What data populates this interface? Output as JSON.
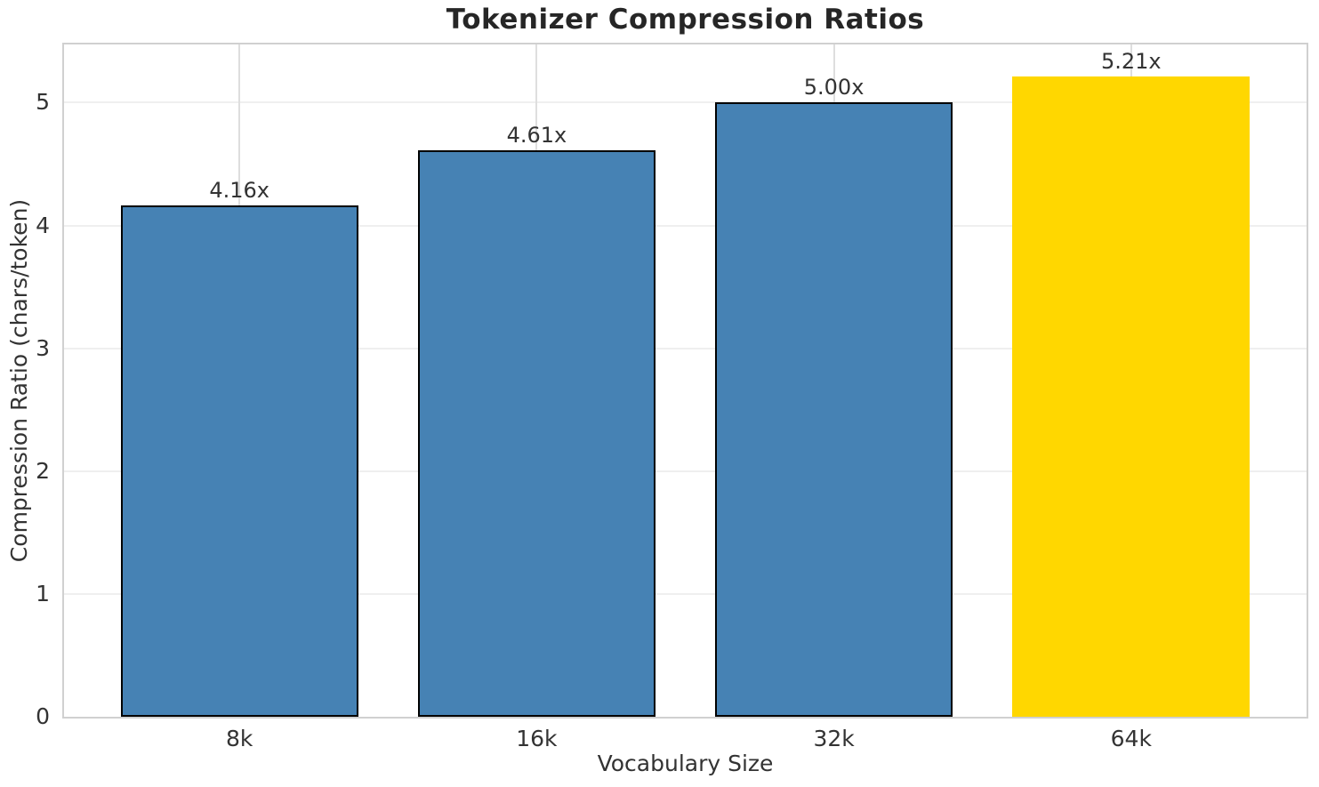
{
  "chart_data": {
    "type": "bar",
    "title": "Tokenizer Compression Ratios",
    "xlabel": "Vocabulary Size",
    "ylabel": "Compression Ratio (chars/token)",
    "categories": [
      "8k",
      "16k",
      "32k",
      "64k"
    ],
    "values": [
      4.16,
      4.61,
      5.0,
      5.21
    ],
    "bar_labels": [
      "4.16x",
      "4.61x",
      "5.00x",
      "5.21x"
    ],
    "bar_colors": [
      "#4682B4",
      "#4682B4",
      "#4682B4",
      "#FFD700"
    ],
    "bar_edge_colors": [
      "#000000",
      "#000000",
      "#000000",
      "none"
    ],
    "yticks": [
      0,
      1,
      2,
      3,
      4,
      5
    ],
    "ytick_labels": [
      "0",
      "1",
      "2",
      "3",
      "4",
      "5"
    ],
    "ylim": [
      0,
      5.474
    ],
    "grid": true,
    "legend_position": "none"
  },
  "colors": {
    "background": "#ffffff",
    "bar_blue": "#4682B4",
    "bar_gold": "#FFD700",
    "bar_edge": "#000000",
    "grid_horizontal": "#efefef",
    "grid_vertical": "#dedede",
    "spine": "#d0d0d0",
    "text": "#333333",
    "title_text": "#262626"
  }
}
